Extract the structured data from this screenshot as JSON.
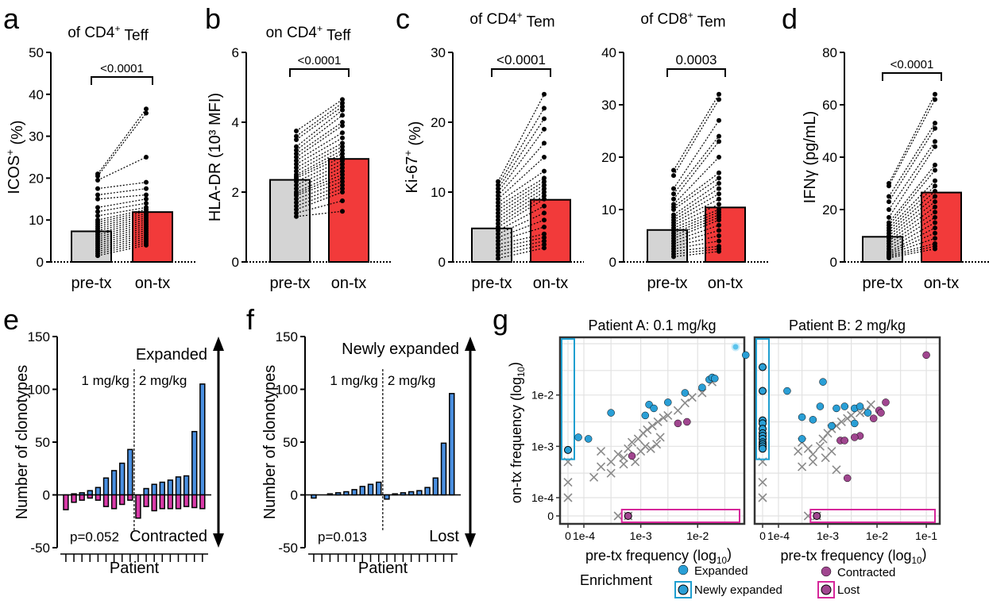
{
  "panel_letters": [
    "a",
    "b",
    "c",
    "d",
    "e",
    "f",
    "g"
  ],
  "chart_data": [
    {
      "id": "a",
      "type": "bar",
      "title": "of CD4+ Teff",
      "title_parts": {
        "main": "of CD4",
        "sup": "+",
        "tail": " Teff"
      },
      "ylabel": "ICOS+ (%)",
      "ylabel_parts": {
        "main": "ICOS",
        "sup": "+",
        "tail": " (%)"
      },
      "categories": [
        "pre-tx",
        "on-tx"
      ],
      "values": [
        7.3,
        11.9
      ],
      "ylim": [
        0,
        50
      ],
      "yticks": [
        "0",
        "10",
        "20",
        "30",
        "40",
        "50"
      ],
      "pvalue": "<0.0001",
      "pre": [
        21,
        20.5,
        19.5,
        17.5,
        16,
        15,
        13,
        12,
        11,
        10,
        9.5,
        9,
        8.5,
        8,
        7.5,
        7,
        6.5,
        6,
        5.5,
        5,
        4.5,
        4,
        3.5,
        3,
        2.5,
        2,
        1.5
      ],
      "on": [
        36.5,
        35.5,
        25,
        19,
        17.5,
        16,
        15,
        14,
        13,
        12.5,
        12,
        11.5,
        11,
        10.5,
        10,
        9.5,
        9,
        8.5,
        8,
        7.5,
        7,
        6.5,
        6,
        5.5,
        5,
        4.5,
        4
      ]
    },
    {
      "id": "b",
      "type": "bar",
      "title": "on CD4+ Teff",
      "title_parts": {
        "main": "on CD4",
        "sup": "+",
        "tail": " Teff"
      },
      "ylabel": "HLA-DR (10³ MFI)",
      "categories": [
        "pre-tx",
        "on-tx"
      ],
      "values": [
        2.35,
        2.95
      ],
      "ylim": [
        0,
        6
      ],
      "yticks": [
        "0",
        "2",
        "4",
        "6"
      ],
      "pvalue": "<0.0001",
      "pre": [
        3.75,
        3.6,
        3.5,
        3.3,
        3.2,
        3.1,
        3.0,
        2.9,
        2.8,
        2.7,
        2.6,
        2.5,
        2.45,
        2.4,
        2.3,
        2.2,
        2.1,
        2.0,
        1.95,
        1.9,
        1.8,
        1.7,
        1.6,
        1.5,
        1.4,
        1.3
      ],
      "on": [
        4.65,
        4.55,
        4.45,
        4.35,
        4.2,
        4.0,
        3.9,
        3.7,
        3.55,
        3.4,
        3.3,
        3.2,
        3.1,
        3.0,
        2.9,
        2.8,
        2.7,
        2.6,
        2.5,
        2.4,
        2.3,
        2.2,
        2.1,
        2.0,
        1.75,
        1.45
      ]
    },
    {
      "id": "c1",
      "type": "bar",
      "title": "of CD4+ Tem",
      "title_parts": {
        "main": "of CD4",
        "sup": "+",
        "tail": " Tem"
      },
      "ylabel": "Ki-67+ (%)",
      "ylabel_parts": {
        "main": "Ki-67",
        "sup": "+",
        "tail": " (%)"
      },
      "categories": [
        "pre-tx",
        "on-tx"
      ],
      "values": [
        4.8,
        8.9
      ],
      "ylim": [
        0,
        30
      ],
      "yticks": [
        "0",
        "10",
        "20",
        "30"
      ],
      "pvalue": "<0.0001",
      "pre": [
        11.5,
        11,
        10.5,
        10,
        9.5,
        9,
        8.5,
        8,
        7.5,
        7,
        6.5,
        6,
        5.5,
        5,
        4.5,
        4,
        3.5,
        3,
        2.5,
        2,
        1.5,
        1,
        0.5
      ],
      "on": [
        24,
        22,
        20.5,
        19,
        17,
        15,
        13,
        12,
        11.5,
        11,
        10.5,
        10,
        9.5,
        9,
        8,
        7,
        6,
        5,
        4,
        3.5,
        3,
        2.5,
        2
      ]
    },
    {
      "id": "c2",
      "type": "bar",
      "title": "of CD8+ Tem",
      "title_parts": {
        "main": "of CD8",
        "sup": "+",
        "tail": " Tem"
      },
      "ylabel": "",
      "categories": [
        "pre-tx",
        "on-tx"
      ],
      "values": [
        6.1,
        10.4
      ],
      "ylim": [
        0,
        40
      ],
      "yticks": [
        "0",
        "10",
        "20",
        "30",
        "40"
      ],
      "pvalue": "0.0003",
      "pre": [
        17.5,
        16.5,
        14,
        13,
        12,
        11,
        10.5,
        10,
        9,
        8.5,
        8,
        7.5,
        7,
        6.5,
        6,
        5.5,
        5,
        4.5,
        4,
        3.5,
        3,
        2.5,
        2,
        1.5,
        1
      ],
      "on": [
        32,
        31,
        27,
        24,
        23,
        20,
        17,
        16,
        15,
        14,
        13,
        12,
        11,
        10,
        9.5,
        9,
        8.5,
        8,
        7,
        6,
        5,
        4,
        3,
        2.5,
        2
      ]
    },
    {
      "id": "d",
      "type": "bar",
      "title": "",
      "ylabel": "IFNγ (pg/mL)",
      "categories": [
        "pre-tx",
        "on-tx"
      ],
      "values": [
        9.6,
        26.5
      ],
      "ylim": [
        0,
        80
      ],
      "yticks": [
        "0",
        "20",
        "40",
        "60",
        "80"
      ],
      "pvalue": "<0.0001",
      "pre": [
        30,
        29,
        25,
        23,
        20,
        17,
        15,
        14,
        13,
        12,
        11,
        10,
        9,
        8,
        7,
        6,
        5,
        4,
        3.5,
        3,
        2.5,
        2,
        1.5
      ],
      "on": [
        64,
        62,
        53,
        51,
        46,
        44,
        37,
        35,
        31,
        29,
        27,
        25,
        23,
        21,
        19,
        17,
        15,
        13,
        11,
        9,
        7,
        6,
        5
      ]
    },
    {
      "id": "e",
      "type": "bar",
      "title": "",
      "ylabel": "Number of clonotypes",
      "xlabel": "Patient",
      "ylim": [
        -50,
        150
      ],
      "yticks": [
        "-50",
        "0",
        "50",
        "100",
        "150"
      ],
      "groups": [
        "1 mg/kg",
        "2 mg/kg"
      ],
      "expanded_label": "Expanded",
      "contracted_label": "Contracted",
      "pvalue": "p=0.052",
      "series": [
        {
          "name": "Expanded",
          "values": [
            0,
            1,
            2,
            4,
            7,
            16,
            23,
            30,
            43,
            0,
            6,
            10,
            12,
            14,
            17,
            18,
            60,
            105
          ]
        },
        {
          "name": "Contracted",
          "values": [
            -14,
            -7,
            -5,
            -3,
            -5,
            -11,
            -13,
            -9,
            -5,
            -22,
            -11,
            -15,
            -13,
            -13,
            -13,
            -11,
            -12,
            -13
          ]
        }
      ]
    },
    {
      "id": "f",
      "type": "bar",
      "title": "",
      "ylabel": "Number of clonotypes",
      "xlabel": "Patient",
      "ylim": [
        -50,
        150
      ],
      "yticks": [
        "-50",
        "0",
        "50",
        "100",
        "150"
      ],
      "groups": [
        "1 mg/kg",
        "2 mg/kg"
      ],
      "expanded_label": "Newly expanded",
      "contracted_label": "Lost",
      "pvalue": "p=0.013",
      "series": [
        {
          "name": "Newly expanded",
          "values": [
            0,
            0,
            1,
            2,
            3,
            5,
            8,
            10,
            12,
            0,
            1,
            2,
            3,
            4,
            7,
            16,
            49,
            96
          ]
        },
        {
          "name": "Lost",
          "values": [
            -3,
            0,
            0,
            0,
            0,
            0,
            0,
            0,
            0,
            -4,
            0,
            0,
            0,
            0,
            0,
            0,
            0,
            0
          ]
        }
      ]
    },
    {
      "id": "g",
      "type": "scatter",
      "titles": [
        "Patient A: 0.1 mg/kg",
        "Patient B: 2 mg/kg"
      ],
      "xlabel": "pre-tx frequency (log10)",
      "ylabel": "on-tx frequency (log10)",
      "xlabel_parts": {
        "main": "pre-tx frequency (log",
        "sub": "10",
        "tail": ")"
      },
      "ylabel_parts": {
        "main": "on-tx frequency (log",
        "sub": "10",
        "tail": ")"
      },
      "x_ticks_A": [
        "0",
        "1e-4",
        "1e-3",
        "1e-2"
      ],
      "x_ticks_B": [
        "0",
        "1e-4",
        "1e-3",
        "1e-2",
        "1e-1"
      ],
      "y_ticks": [
        "0",
        "1e-4",
        "1e-3",
        "1e-2"
      ],
      "legend_title": "Enrichment",
      "legend": [
        "Expanded",
        "Newly expanded",
        "Contracted",
        "Lost"
      ],
      "colors": {
        "expanded": "#2a9fd6",
        "contracted": "#a0468f",
        "box_new": "#1f9fd0",
        "box_lost": "#d6279a",
        "cross": "#8a8a8a"
      },
      "A": {
        "expanded": [
          [
            8e-05,
            0.0015
          ],
          [
            0.00012,
            0.0014
          ],
          [
            0.0003,
            0.0045
          ],
          [
            0.0012,
            0.004
          ],
          [
            0.0014,
            0.0065
          ],
          [
            0.0017,
            0.0055
          ],
          [
            0.003,
            0.0072
          ],
          [
            0.006,
            0.011
          ],
          [
            0.012,
            0.014
          ],
          [
            0.016,
            0.02
          ],
          [
            0.018,
            0.022
          ],
          [
            0.02,
            0.021
          ],
          [
            0.07,
            0.06
          ]
        ],
        "contracted": [
          [
            0.0007,
            0.00065
          ],
          [
            0.0045,
            0.0028
          ],
          [
            0.0065,
            0.003
          ]
        ],
        "newly_expanded": [
          [
            0,
            0.00085
          ]
        ],
        "cross": [
          [
            0.0002,
            0.0008
          ],
          [
            0.0002,
            0.0004
          ],
          [
            0.0003,
            0.0005
          ],
          [
            0.0004,
            0.0007
          ],
          [
            0.0005,
            0.0006
          ],
          [
            0.0006,
            0.0009
          ],
          [
            0.0007,
            0.0012
          ],
          [
            0.0009,
            0.0014
          ],
          [
            0.0011,
            0.0018
          ],
          [
            0.0013,
            0.0021
          ],
          [
            0.0016,
            0.0025
          ],
          [
            0.002,
            0.003
          ],
          [
            0.0025,
            0.0036
          ],
          [
            0.003,
            0.004
          ],
          [
            0.0045,
            0.005
          ],
          [
            0.006,
            0.007
          ],
          [
            0.008,
            0.009
          ],
          [
            0.012,
            0.011
          ],
          [
            0.018,
            0.018
          ],
          [
            0.0003,
            0.0003
          ],
          [
            0.0005,
            0.00045
          ],
          [
            0.0008,
            0.0005
          ],
          [
            0.001,
            0.0008
          ],
          [
            0.0012,
            0.001
          ],
          [
            0.0015,
            0.0009
          ],
          [
            0.0019,
            0.0011
          ],
          [
            0.0022,
            0.0015
          ],
          [
            0.00015,
            0.00025
          ]
        ]
      },
      "B": {
        "expanded": [
          [
            0.00015,
            0.012
          ],
          [
            0.0003,
            0.0014
          ],
          [
            0.0003,
            0.0037
          ],
          [
            0.0005,
            0.0033
          ],
          [
            0.0007,
            0.006
          ],
          [
            0.0008,
            0.018
          ],
          [
            0.0012,
            0.0025
          ],
          [
            0.0015,
            0.0055
          ],
          [
            0.0022,
            0.006
          ],
          [
            0.0035,
            0.0055
          ],
          [
            0.0035,
            0.0028
          ],
          [
            0.0045,
            0.006
          ],
          [
            0.0065,
            0.0045
          ]
        ],
        "contracted": [
          [
            0.0018,
            0.0013
          ],
          [
            0.0022,
            0.0013
          ],
          [
            0.0045,
            0.0016
          ],
          [
            0.0035,
            0.0015
          ],
          [
            0.0025,
            0.00024
          ],
          [
            0.0085,
            0.0035
          ],
          [
            0.011,
            0.005
          ],
          [
            0.015,
            0.0072
          ],
          [
            0.012,
            0.0045
          ],
          [
            0.1,
            0.06
          ]
        ],
        "newly_expanded": [
          [
            0,
            0.035
          ],
          [
            0,
            0.012
          ],
          [
            0,
            0.0032
          ],
          [
            0,
            0.0028
          ],
          [
            0,
            0.0022
          ],
          [
            0,
            0.0018
          ],
          [
            0,
            0.0016
          ],
          [
            0,
            0.0014
          ],
          [
            0,
            0.0012
          ],
          [
            0,
            0.0011
          ],
          [
            0,
            0.001
          ],
          [
            0,
            0.0009
          ]
        ],
        "cross": [
          [
            0.00025,
            0.0008
          ],
          [
            0.0003,
            0.0012
          ],
          [
            0.0004,
            0.0009
          ],
          [
            0.0005,
            0.0007
          ],
          [
            0.0007,
            0.001
          ],
          [
            0.0008,
            0.0014
          ],
          [
            0.001,
            0.0018
          ],
          [
            0.0012,
            0.0022
          ],
          [
            0.0015,
            0.0025
          ],
          [
            0.0019,
            0.003
          ],
          [
            0.0025,
            0.0035
          ],
          [
            0.003,
            0.004
          ],
          [
            0.0045,
            0.0045
          ],
          [
            0.006,
            0.005
          ],
          [
            0.0075,
            0.0065
          ],
          [
            0.0003,
            0.0004
          ],
          [
            0.0005,
            0.0005
          ],
          [
            0.0009,
            0.0006
          ],
          [
            0.0012,
            0.0008
          ],
          [
            0.0015,
            0.00035
          ]
        ]
      }
    }
  ]
}
